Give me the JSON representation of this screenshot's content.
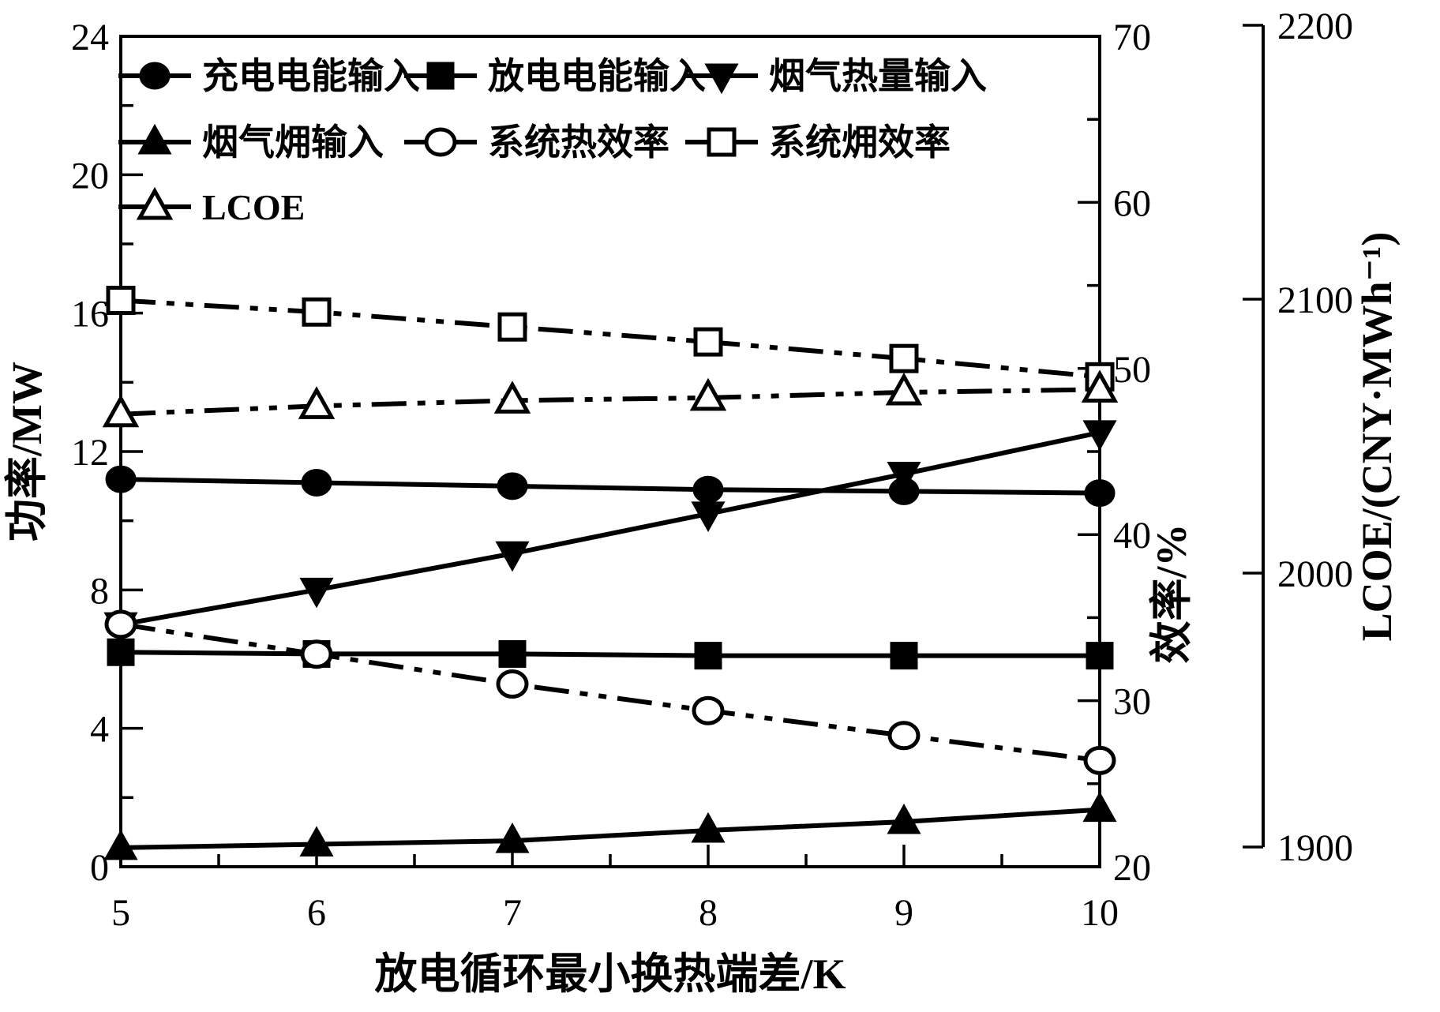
{
  "chart_data": {
    "type": "line",
    "title": "",
    "xlabel": "放电循环最小换热端差/K",
    "x": [
      5,
      6,
      7,
      8,
      9,
      10
    ],
    "x_ticks": [
      "5",
      "6",
      "7",
      "8",
      "9",
      "10"
    ],
    "x_minor_step": 0.5,
    "axes": {
      "left": {
        "label": "功率/MW",
        "min": 0,
        "max": 24,
        "ticks": [
          0,
          4,
          8,
          12,
          16,
          20,
          24
        ],
        "minor_step": 2
      },
      "eff": {
        "label": "效率/%",
        "min": 20,
        "max": 70,
        "ticks": [
          20,
          30,
          40,
          50,
          60,
          70
        ],
        "minor_step": 5
      },
      "lcoe": {
        "label": "LCOE/(CNY·MWh⁻¹)",
        "min": 1900,
        "max": 2200,
        "ticks": [
          1900,
          2000,
          2100,
          2200
        ]
      }
    },
    "grid": false,
    "legend_position": "top-left-inside",
    "series": [
      {
        "id": "charging-power-input",
        "name": "充电电能输入",
        "axis": "left",
        "marker": "circle-filled",
        "line": "solid",
        "values": [
          11.2,
          11.1,
          11.0,
          10.9,
          10.85,
          10.8
        ]
      },
      {
        "id": "discharge-power-input",
        "name": "放电电能输入",
        "axis": "left",
        "marker": "square-filled",
        "line": "solid",
        "values": [
          6.2,
          6.15,
          6.15,
          6.1,
          6.1,
          6.1
        ]
      },
      {
        "id": "flue-gas-heat-input",
        "name": "烟气热量输入",
        "axis": "left",
        "marker": "triangle-down-filled",
        "line": "solid",
        "values": [
          7.0,
          8.0,
          9.05,
          10.2,
          11.35,
          12.55
        ]
      },
      {
        "id": "flue-gas-exergy-input",
        "name": "烟气㶲输入",
        "axis": "left",
        "marker": "triangle-up-filled",
        "line": "solid",
        "values": [
          0.55,
          0.65,
          0.75,
          1.05,
          1.3,
          1.65
        ]
      },
      {
        "id": "system-thermal-efficiency",
        "name": "系统热效率",
        "axis": "eff",
        "marker": "circle-open",
        "line": "dashdot",
        "values": [
          34.6,
          32.8,
          31.0,
          29.4,
          27.9,
          26.4
        ]
      },
      {
        "id": "system-exergy-efficiency",
        "name": "系统㶲效率",
        "axis": "eff",
        "marker": "square-open",
        "line": "dashdot",
        "values": [
          54.1,
          53.4,
          52.5,
          51.6,
          50.6,
          49.5
        ]
      },
      {
        "id": "lcoe",
        "name": "LCOE",
        "axis": "lcoe",
        "marker": "triangle-open",
        "line": "dashdot",
        "values": [
          2058,
          2061,
          2063,
          2064,
          2066,
          2067
        ]
      }
    ],
    "legend_rows": [
      [
        0,
        1,
        2
      ],
      [
        3,
        4,
        5
      ],
      [
        6
      ]
    ],
    "colors": {
      "foreground": "#000000",
      "background": "#ffffff"
    }
  }
}
